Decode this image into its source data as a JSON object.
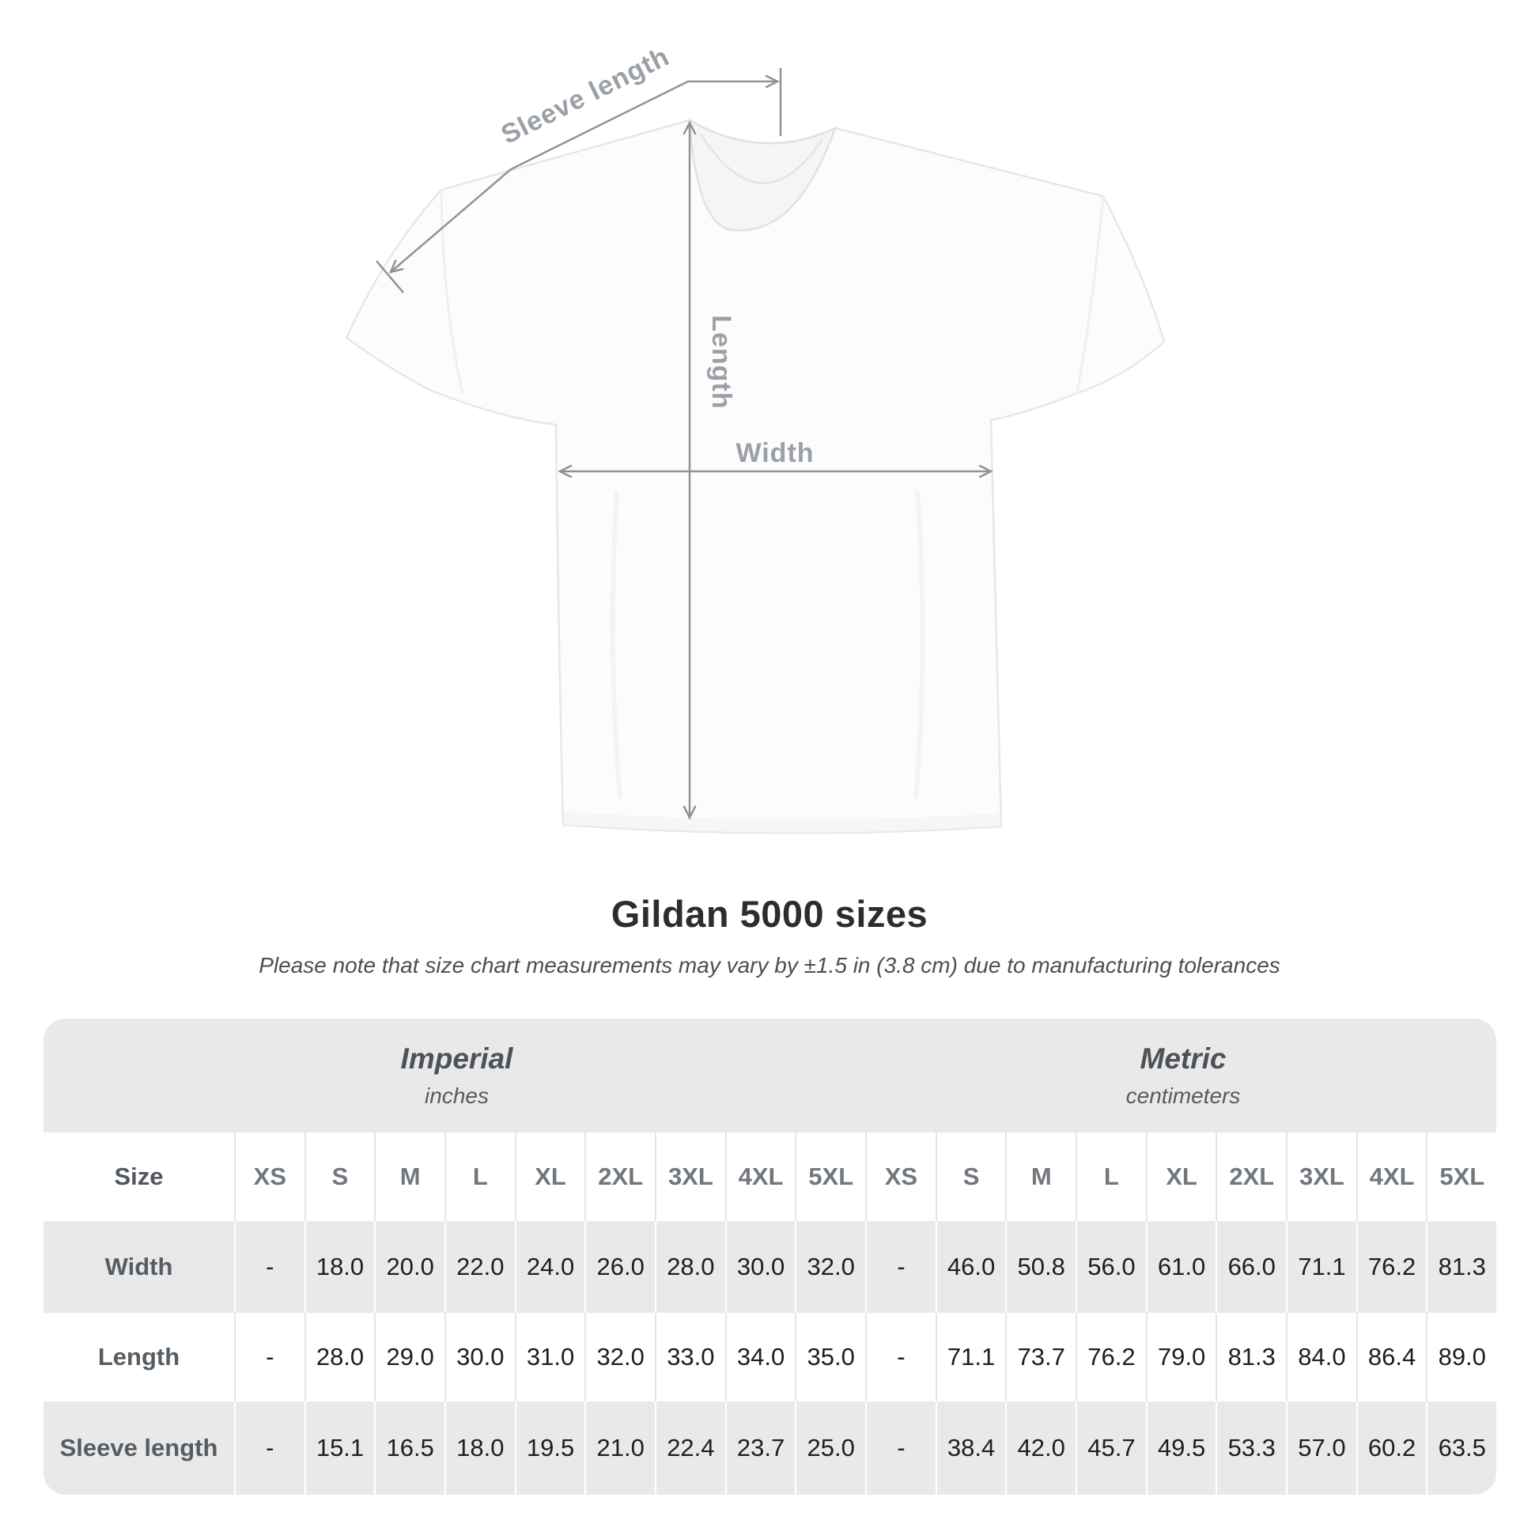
{
  "diagram": {
    "sleeve_length_label": "Sleeve length",
    "length_label": "Length",
    "width_label": "Width"
  },
  "heading": {
    "title": "Gildan 5000 sizes",
    "note": "Please note that size chart measurements may vary by ±1.5 in (3.8 cm) due to manufacturing tolerances"
  },
  "colors": {
    "measure_line": "#8f9296",
    "measure_label": "#9aa0a5",
    "band_background": "#e9e9e9",
    "alt_row_background": "#e9e9e9",
    "separator_on_white": "#e4e4e4",
    "separator_on_gray": "#ffffff",
    "title_text": "#2d2d2d",
    "number_text": "#1e1e1e"
  },
  "chart_data": {
    "type": "table",
    "title": "Gildan 5000 sizes",
    "subtitle": "Please note that size chart measurements may vary by ±1.5 in (3.8 cm) due to manufacturing tolerances",
    "groups": [
      {
        "label": "Imperial",
        "sublabel": "inches"
      },
      {
        "label": "Metric",
        "sublabel": "centimeters"
      }
    ],
    "size_column_header": "Size",
    "size_headers": [
      "XS",
      "S",
      "M",
      "L",
      "XL",
      "2XL",
      "3XL",
      "4XL",
      "5XL",
      "XS",
      "S",
      "M",
      "L",
      "XL",
      "2XL",
      "3XL",
      "4XL",
      "5XL"
    ],
    "rows": [
      {
        "label": "Width",
        "values": [
          "-",
          "18.0",
          "20.0",
          "22.0",
          "24.0",
          "26.0",
          "28.0",
          "30.0",
          "32.0",
          "-",
          "46.0",
          "50.8",
          "56.0",
          "61.0",
          "66.0",
          "71.1",
          "76.2",
          "81.3"
        ]
      },
      {
        "label": "Length",
        "values": [
          "-",
          "28.0",
          "29.0",
          "30.0",
          "31.0",
          "32.0",
          "33.0",
          "34.0",
          "35.0",
          "-",
          "71.1",
          "73.7",
          "76.2",
          "79.0",
          "81.3",
          "84.0",
          "86.4",
          "89.0"
        ]
      },
      {
        "label": "Sleeve length",
        "values": [
          "-",
          "15.1",
          "16.5",
          "18.0",
          "19.5",
          "21.0",
          "22.4",
          "23.7",
          "25.0",
          "-",
          "38.4",
          "42.0",
          "45.7",
          "49.5",
          "53.3",
          "57.0",
          "60.2",
          "63.5"
        ]
      }
    ]
  }
}
